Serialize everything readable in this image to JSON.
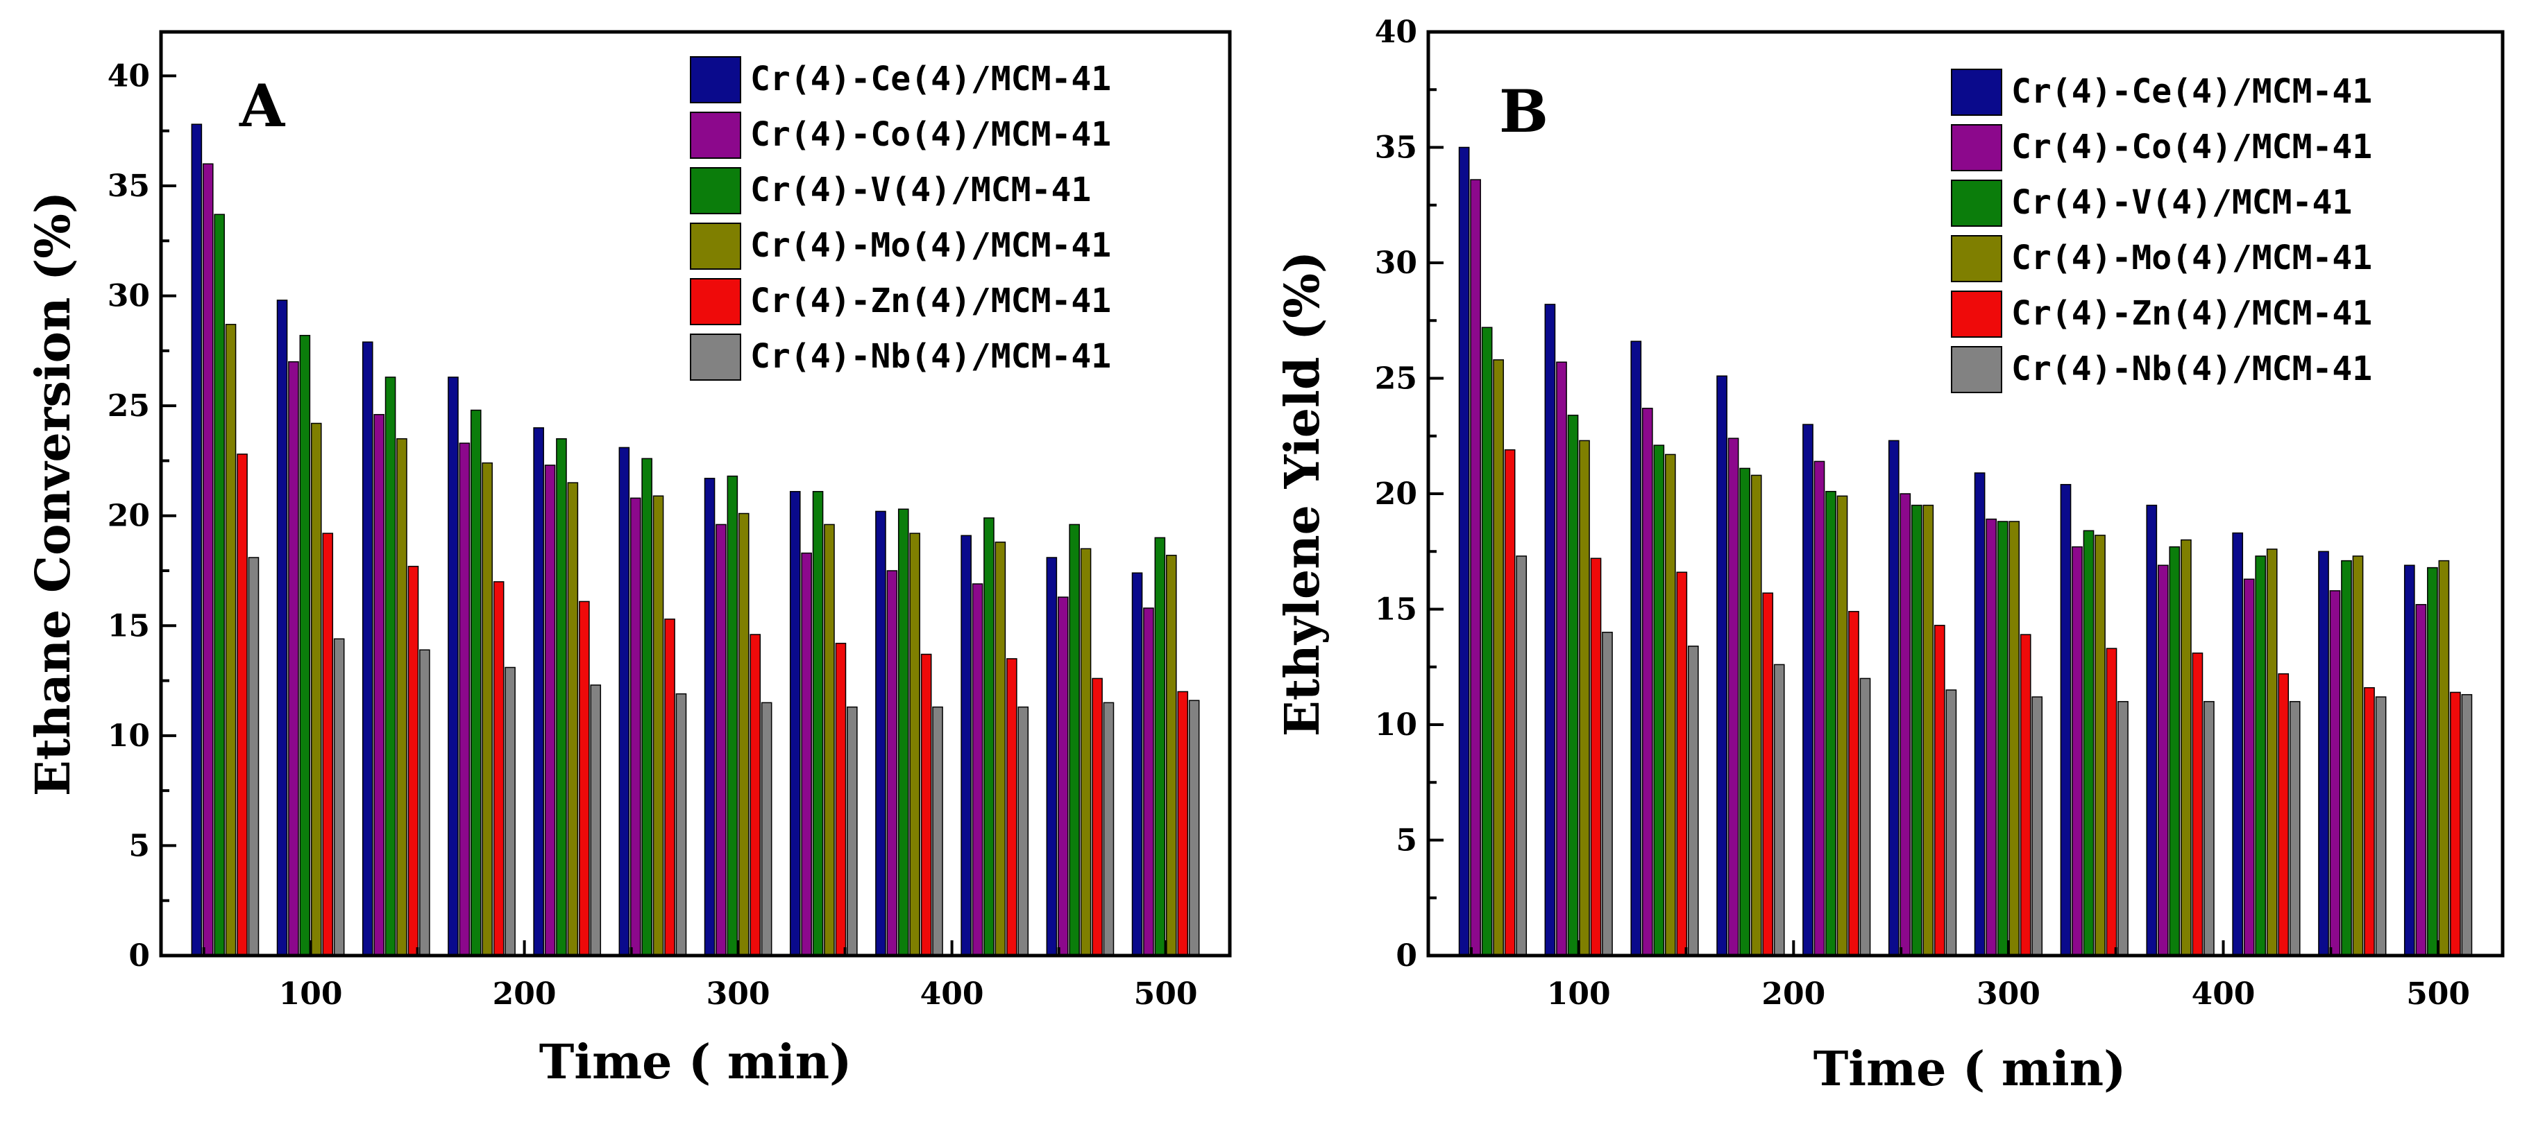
{
  "chart_data": [
    {
      "type": "bar",
      "panel_label": "A",
      "xlabel": "Time ( min)",
      "ylabel": "Ethane Conversion (%)",
      "xlim": [
        30,
        530
      ],
      "ylim": [
        0,
        42
      ],
      "xticks": [
        100,
        200,
        300,
        400,
        500
      ],
      "yticks": [
        0,
        5,
        10,
        15,
        20,
        25,
        30,
        35,
        40
      ],
      "x": [
        60,
        100,
        140,
        180,
        220,
        260,
        300,
        340,
        380,
        420,
        460,
        500
      ],
      "legend_position": "top-right",
      "series": [
        {
          "name": "Cr(4)-Ce(4)/MCM-41",
          "color": "#0a0a8c",
          "values": [
            37.8,
            29.8,
            27.9,
            26.3,
            24.0,
            23.1,
            21.7,
            21.1,
            20.2,
            19.1,
            18.1,
            17.4
          ]
        },
        {
          "name": "Cr(4)-Co(4)/MCM-41",
          "color": "#8c088c",
          "values": [
            36.0,
            27.0,
            24.6,
            23.3,
            22.3,
            20.8,
            19.6,
            18.3,
            17.5,
            16.9,
            16.3,
            15.8
          ]
        },
        {
          "name": "Cr(4)-V(4)/MCM-41",
          "color": "#0b7d0b",
          "values": [
            33.7,
            28.2,
            26.3,
            24.8,
            23.5,
            22.6,
            21.8,
            21.1,
            20.3,
            19.9,
            19.6,
            19.0
          ]
        },
        {
          "name": "Cr(4)-Mo(4)/MCM-41",
          "color": "#7f7f00",
          "values": [
            28.7,
            24.2,
            23.5,
            22.4,
            21.5,
            20.9,
            20.1,
            19.6,
            19.2,
            18.8,
            18.5,
            18.2
          ]
        },
        {
          "name": "Cr(4)-Zn(4)/MCM-41",
          "color": "#ef0a0a",
          "values": [
            22.8,
            19.2,
            17.7,
            17.0,
            16.1,
            15.3,
            14.6,
            14.2,
            13.7,
            13.5,
            12.6,
            12.0
          ]
        },
        {
          "name": "Cr(4)-Nb(4)/MCM-41",
          "color": "#828282",
          "values": [
            18.1,
            14.4,
            13.9,
            13.1,
            12.3,
            11.9,
            11.5,
            11.3,
            11.3,
            11.3,
            11.5,
            11.6
          ]
        }
      ]
    },
    {
      "type": "bar",
      "panel_label": "B",
      "xlabel": "Time ( min)",
      "ylabel": "Ethylene Yield (%)",
      "xlim": [
        30,
        530
      ],
      "ylim": [
        0,
        40
      ],
      "xticks": [
        100,
        200,
        300,
        400,
        500
      ],
      "yticks": [
        0,
        5,
        10,
        15,
        20,
        25,
        30,
        35,
        40
      ],
      "x": [
        60,
        100,
        140,
        180,
        220,
        260,
        300,
        340,
        380,
        420,
        460,
        500
      ],
      "legend_position": "top-right",
      "series": [
        {
          "name": "Cr(4)-Ce(4)/MCM-41",
          "color": "#0a0a8c",
          "values": [
            35.0,
            28.2,
            26.6,
            25.1,
            23.0,
            22.3,
            20.9,
            20.4,
            19.5,
            18.3,
            17.5,
            16.9
          ]
        },
        {
          "name": "Cr(4)-Co(4)/MCM-41",
          "color": "#8c088c",
          "values": [
            33.6,
            25.7,
            23.7,
            22.4,
            21.4,
            20.0,
            18.9,
            17.7,
            16.9,
            16.3,
            15.8,
            15.2
          ]
        },
        {
          "name": "Cr(4)-V(4)/MCM-41",
          "color": "#0b7d0b",
          "values": [
            27.2,
            23.4,
            22.1,
            21.1,
            20.1,
            19.5,
            18.8,
            18.4,
            17.7,
            17.3,
            17.1,
            16.8
          ]
        },
        {
          "name": "Cr(4)-Mo(4)/MCM-41",
          "color": "#7f7f00",
          "values": [
            25.8,
            22.3,
            21.7,
            20.8,
            19.9,
            19.5,
            18.8,
            18.2,
            18.0,
            17.6,
            17.3,
            17.1
          ]
        },
        {
          "name": "Cr(4)-Zn(4)/MCM-41",
          "color": "#ef0a0a",
          "values": [
            21.9,
            17.2,
            16.6,
            15.7,
            14.9,
            14.3,
            13.9,
            13.3,
            13.1,
            12.2,
            11.6,
            11.4
          ]
        },
        {
          "name": "Cr(4)-Nb(4)/MCM-41",
          "color": "#828282",
          "values": [
            17.3,
            14.0,
            13.4,
            12.6,
            12.0,
            11.5,
            11.2,
            11.0,
            11.0,
            11.0,
            11.2,
            11.3
          ]
        }
      ]
    }
  ]
}
